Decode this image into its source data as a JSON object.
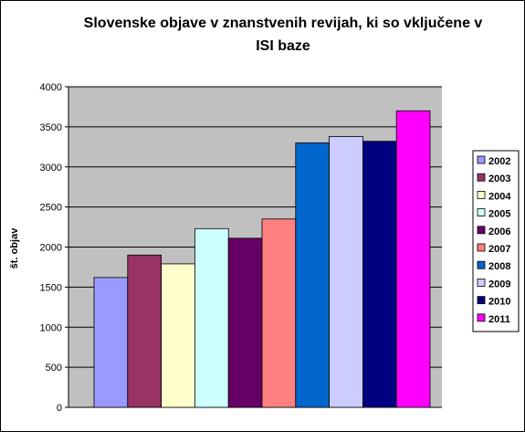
{
  "chart_data": {
    "type": "bar",
    "title_lines": [
      "Slovenske objave v znanstvenih revijah, ki so vključene v",
      "ISI baze"
    ],
    "ylabel": "št. objav",
    "xlabel": "",
    "ylim": [
      0,
      4000
    ],
    "yticks": [
      "0",
      "500",
      "1000",
      "1500",
      "2000",
      "2500",
      "3000",
      "3500",
      "4000"
    ],
    "grid": true,
    "plot_background": "#c0c0c0",
    "legend_position": "right",
    "series": [
      {
        "name": "2002",
        "value": 1620,
        "color": "#9999ff"
      },
      {
        "name": "2003",
        "value": 1900,
        "color": "#993366"
      },
      {
        "name": "2004",
        "value": 1790,
        "color": "#ffffcc"
      },
      {
        "name": "2005",
        "value": 2230,
        "color": "#ccffff"
      },
      {
        "name": "2006",
        "value": 2110,
        "color": "#660066"
      },
      {
        "name": "2007",
        "value": 2350,
        "color": "#ff8080"
      },
      {
        "name": "2008",
        "value": 3300,
        "color": "#0066cc"
      },
      {
        "name": "2009",
        "value": 3380,
        "color": "#ccccff"
      },
      {
        "name": "2010",
        "value": 3320,
        "color": "#000080"
      },
      {
        "name": "2011",
        "value": 3700,
        "color": "#ff00ff"
      }
    ]
  }
}
